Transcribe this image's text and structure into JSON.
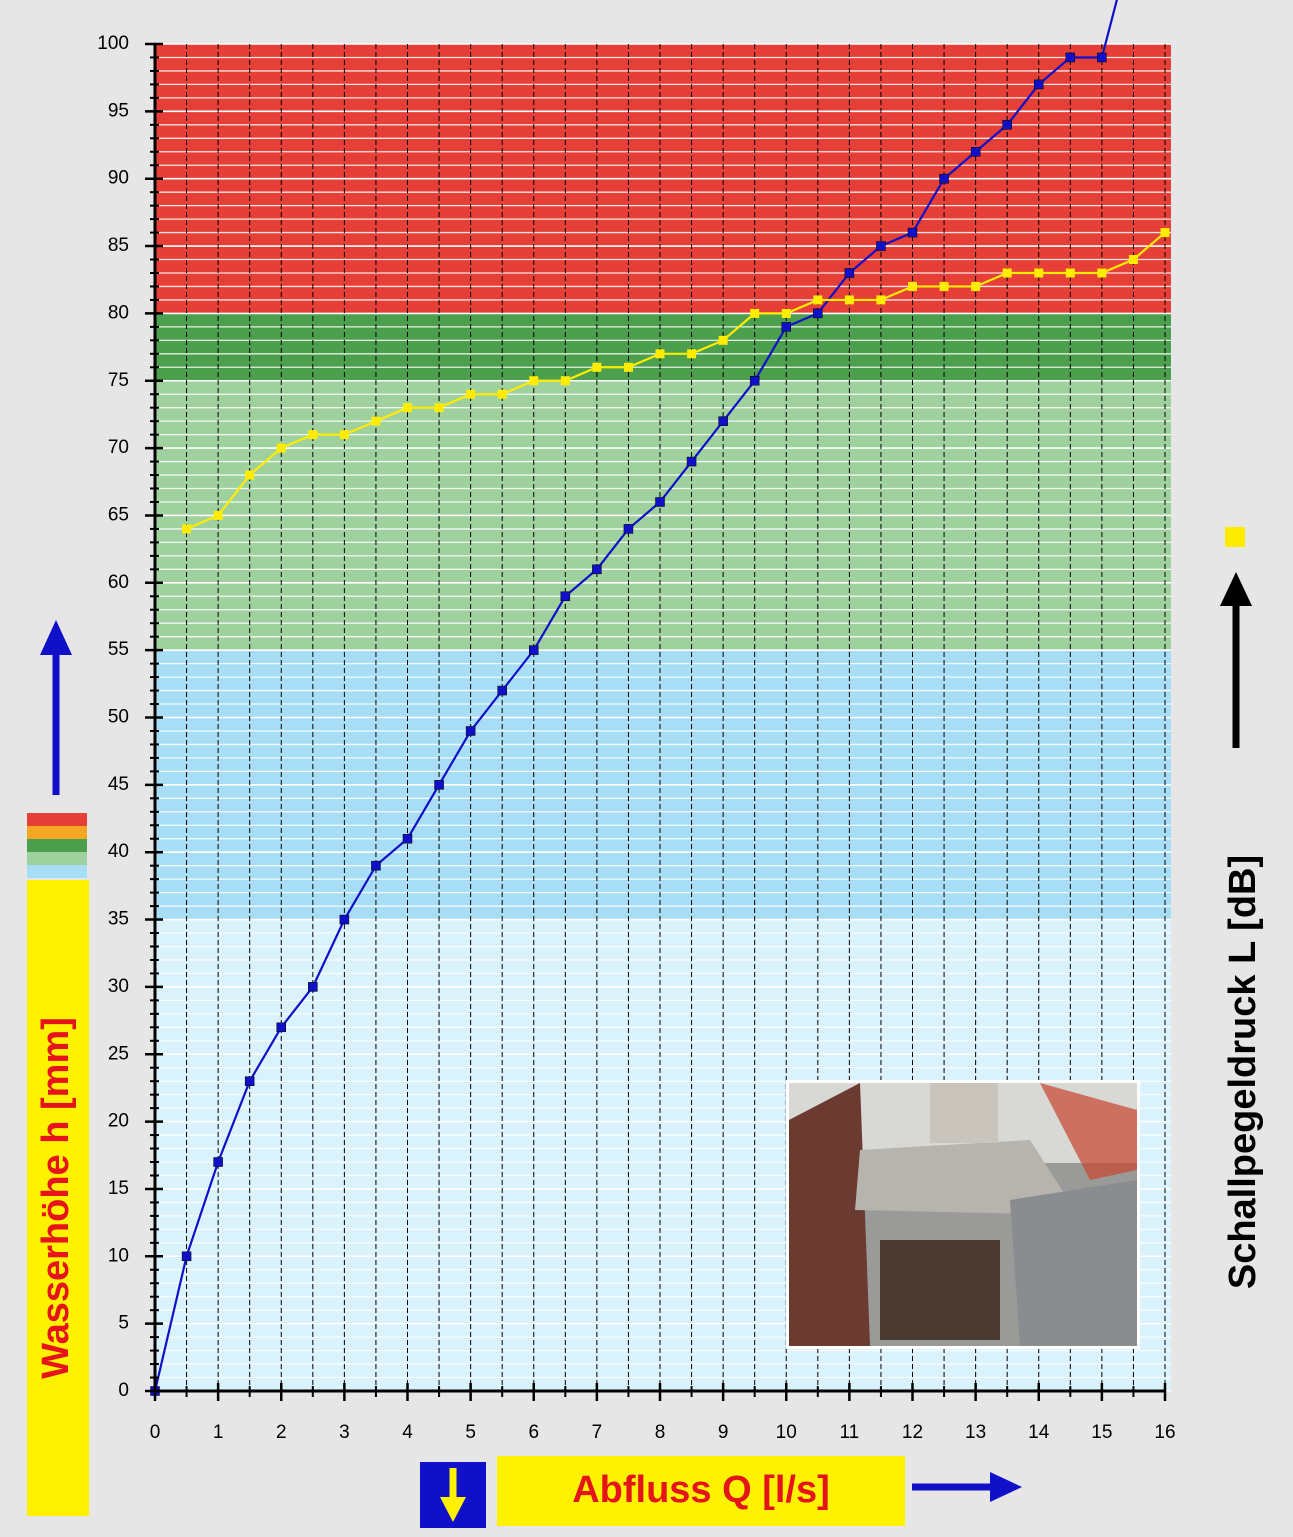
{
  "chart_data": {
    "type": "line",
    "y_label": "Wasserhöhe h [mm]",
    "y2_label": "Schallpegeldruck L [dB]",
    "x_label": "Abfluss Q [l/s]",
    "xlim": [
      0,
      16
    ],
    "ylim": [
      0,
      100
    ],
    "xticks": [
      0,
      1,
      2,
      3,
      4,
      5,
      6,
      7,
      8,
      9,
      10,
      11,
      12,
      13,
      14,
      15,
      16
    ],
    "yticks": [
      0,
      5,
      10,
      15,
      20,
      25,
      30,
      35,
      40,
      45,
      50,
      55,
      60,
      65,
      70,
      75,
      80,
      85,
      90,
      95,
      100
    ],
    "grid": true,
    "bands": [
      {
        "from": 80,
        "to": 100,
        "color": "#e53f38"
      },
      {
        "from": 75,
        "to": 80,
        "color": "#4b9f4d"
      },
      {
        "from": 55,
        "to": 75,
        "color": "#9fd19f"
      },
      {
        "from": 35,
        "to": 55,
        "color": "#a8def5"
      },
      {
        "from": 0,
        "to": 35,
        "color": "#d9f2fc"
      }
    ],
    "series": [
      {
        "color": "#1010c8",
        "x": [
          0,
          0.5,
          1,
          1.5,
          2,
          2.5,
          3,
          3.5,
          4,
          4.5,
          5,
          5.5,
          6,
          6.5,
          7,
          7.5,
          8,
          8.5,
          9,
          9.5,
          10,
          10.5,
          11,
          11.5,
          12,
          12.5,
          13,
          13.5,
          14,
          14.5,
          15,
          15.5
        ],
        "values": [
          0,
          10,
          17,
          23,
          27,
          30,
          35,
          39,
          41,
          45,
          49,
          52,
          55,
          59,
          61,
          64,
          66,
          69,
          72,
          75,
          79,
          80,
          83,
          85,
          86,
          90,
          92,
          94,
          97,
          99,
          99,
          108
        ]
      },
      {
        "color": "#ffec00",
        "x": [
          0.5,
          1,
          1.5,
          2,
          2.5,
          3,
          3.5,
          4,
          4.5,
          5,
          5.5,
          6,
          6.5,
          7,
          7.5,
          8,
          8.5,
          9,
          9.5,
          10,
          10.5,
          11,
          11.5,
          12,
          12.5,
          13,
          13.5,
          14,
          14.5,
          15,
          15.5,
          16
        ],
        "values": [
          64,
          65,
          68,
          70,
          71,
          71,
          72,
          73,
          73,
          74,
          74,
          75,
          75,
          76,
          76,
          77,
          77,
          78,
          80,
          80,
          81,
          81,
          81,
          82,
          82,
          82,
          83,
          83,
          83,
          83,
          84,
          86
        ]
      }
    ]
  }
}
